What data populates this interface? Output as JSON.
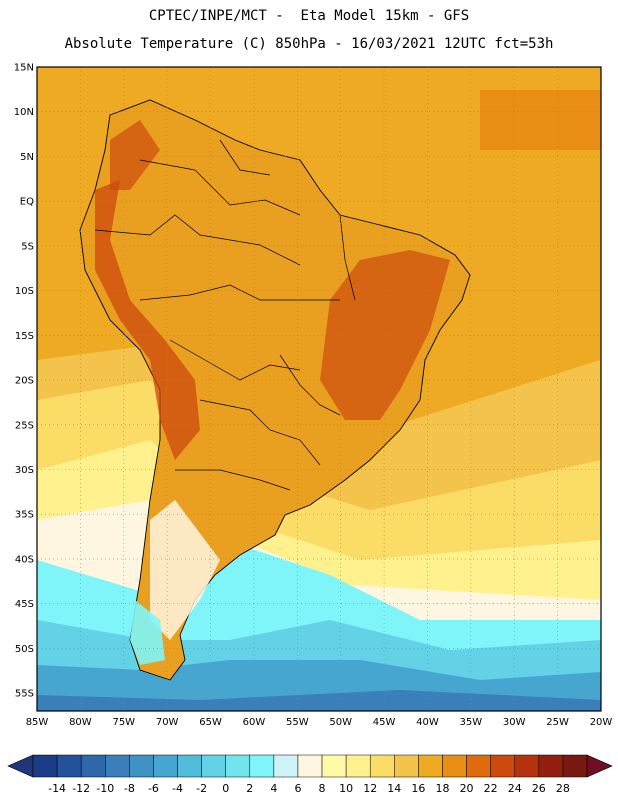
{
  "header": {
    "line1": "CPTEC/INPE/MCT -  Eta Model 15km - GFS",
    "line2": "Absolute Temperature (C) 850hPa - 16/03/2021 12UTC fct=53h"
  },
  "map": {
    "lat_labels": [
      "15N",
      "10N",
      "5N",
      "EQ",
      "5S",
      "10S",
      "15S",
      "20S",
      "25S",
      "30S",
      "35S",
      "40S",
      "45S",
      "50S",
      "55S"
    ],
    "lon_labels": [
      "85W",
      "80W",
      "75W",
      "70W",
      "65W",
      "60W",
      "55W",
      "50W",
      "45W",
      "40W",
      "35W",
      "30W",
      "25W",
      "20W"
    ],
    "lat_range": [
      15,
      -57
    ],
    "lon_range": [
      -85,
      -20
    ],
    "grid": "dotted"
  },
  "colorbar": {
    "labels": [
      "-14",
      "-12",
      "-10",
      "-8",
      "-6",
      "-4",
      "-2",
      "0",
      "2",
      "4",
      "6",
      "8",
      "10",
      "12",
      "14",
      "16",
      "18",
      "20",
      "22",
      "24",
      "26",
      "28"
    ],
    "colors": [
      "#1b3c86",
      "#24529a",
      "#2f67ab",
      "#3a7fba",
      "#3f93c4",
      "#46a6cf",
      "#52bcdb",
      "#63d1e6",
      "#71e4ee",
      "#7ff5f9",
      "#cdf3f9",
      "#fff6e2",
      "#fffaa7",
      "#fff28e",
      "#fadc66",
      "#f3c34b",
      "#eeaa23",
      "#e98e14",
      "#e06a0e",
      "#cc4a0e",
      "#b5320d",
      "#93200e",
      "#781a12"
    ],
    "low_end": "#20357a",
    "high_end": "#6f0f22"
  }
}
